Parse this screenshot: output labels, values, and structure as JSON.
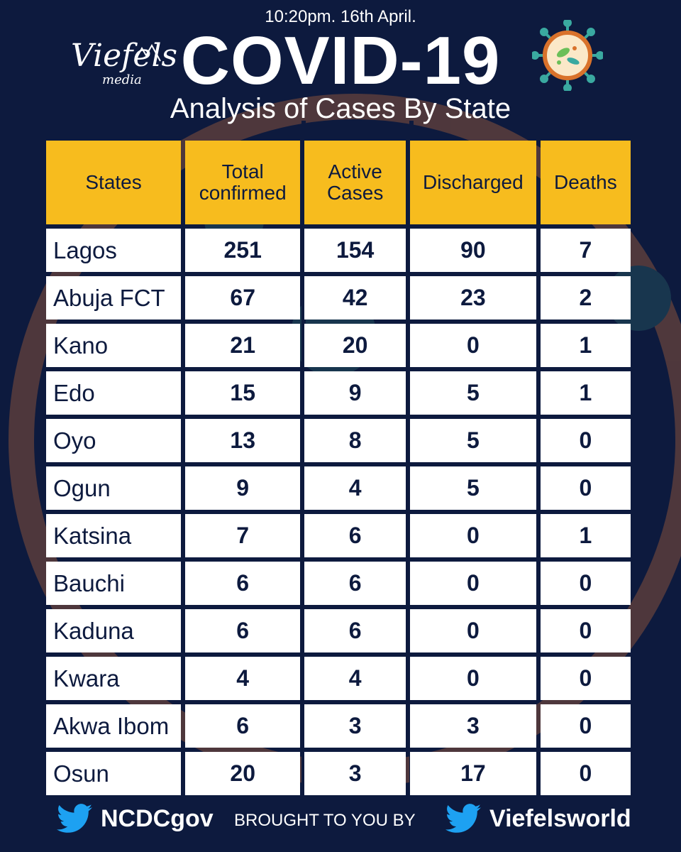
{
  "header": {
    "timestamp": "10:20pm. 16th April.",
    "title": "COVID-19",
    "subtitle": "Analysis of Cases By State",
    "logo_lettering": "Viefels",
    "logo_sub": "media"
  },
  "table": {
    "headers": [
      "States",
      "Total confirmed",
      "Active Cases",
      "Discharged",
      "Deaths"
    ],
    "rows": [
      [
        "Lagos",
        "251",
        "154",
        "90",
        "7"
      ],
      [
        "Abuja FCT",
        "67",
        "42",
        "23",
        "2"
      ],
      [
        "Kano",
        "21",
        "20",
        "0",
        "1"
      ],
      [
        "Edo",
        "15",
        "9",
        "5",
        "1"
      ],
      [
        "Oyo",
        "13",
        "8",
        "5",
        "0"
      ],
      [
        "Ogun",
        "9",
        "4",
        "5",
        "0"
      ],
      [
        "Katsina",
        "7",
        "6",
        "0",
        "1"
      ],
      [
        "Bauchi",
        "6",
        "6",
        "0",
        "0"
      ],
      [
        "Kaduna",
        "6",
        "6",
        "0",
        "0"
      ],
      [
        "Kwara",
        "4",
        "4",
        "0",
        "0"
      ],
      [
        "Akwa Ibom",
        "6",
        "3",
        "3",
        "0"
      ],
      [
        "Osun",
        "20",
        "3",
        "17",
        "0"
      ]
    ]
  },
  "footer": {
    "left_handle": "NCDCgov",
    "middle_text": "BROUGHT TO YOU BY",
    "right_handle": "Viefelsworld"
  },
  "colors": {
    "background": "#0d1a3e",
    "header_cell": "#f7bc1e",
    "twitter_blue": "#1da1f2"
  },
  "icons": [
    "twitter-bird-icon",
    "virus-icon"
  ]
}
